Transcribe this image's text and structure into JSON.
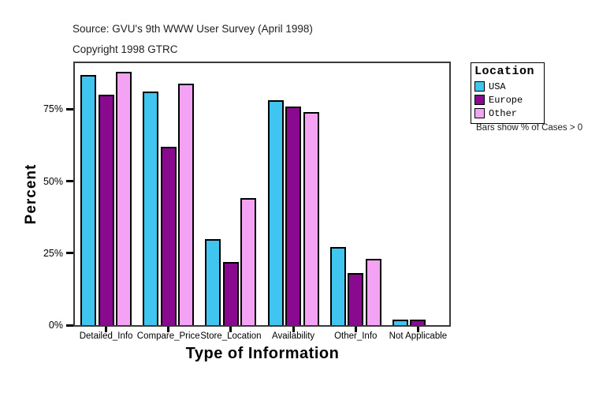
{
  "header": {
    "source_line": "Source: GVU's 9th WWW User Survey (April 1998)",
    "copyright_line": "Copyright 1998 GTRC"
  },
  "chart_data": {
    "type": "bar",
    "title": "",
    "xlabel": "Type of Information",
    "ylabel": "Percent",
    "categories": [
      "Detailed_Info",
      "Compare_Price",
      "Store_Location",
      "Availability",
      "Other_Info",
      "Not Applicable"
    ],
    "series": [
      {
        "name": "USA",
        "color": "#40C4F0",
        "values": [
          87,
          81,
          30,
          78,
          27,
          2
        ]
      },
      {
        "name": "Europe",
        "color": "#8A0A8F",
        "values": [
          80,
          62,
          22,
          76,
          18,
          2
        ]
      },
      {
        "name": "Other",
        "color": "#F4A3F4",
        "values": [
          88,
          84,
          44,
          74,
          23,
          0
        ]
      }
    ],
    "ylim": [
      0,
      91
    ],
    "ytick_values": [
      0,
      25,
      50,
      75
    ],
    "ytick_labels": [
      "0%",
      "25%",
      "50%",
      "75%"
    ],
    "grid": false,
    "legend_title": "Location",
    "legend_position": "right",
    "note": "Bars show % of Cases > 0"
  }
}
